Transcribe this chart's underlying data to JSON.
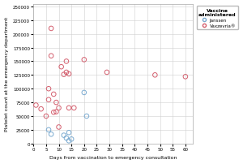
{
  "janssen_x": [
    6,
    7,
    12,
    13,
    14,
    14,
    15,
    20,
    21
  ],
  "janssen_y": [
    25000,
    17000,
    15000,
    10000,
    20000,
    5000,
    8000,
    93000,
    50000
  ],
  "astrazeneca_x": [
    1,
    3,
    5,
    6,
    6,
    7,
    7,
    8,
    8,
    9,
    9,
    10,
    10,
    11,
    12,
    13,
    13,
    14,
    14,
    16,
    20,
    29,
    48,
    60
  ],
  "astrazeneca_y": [
    70000,
    63000,
    50000,
    100000,
    80000,
    160000,
    210000,
    90000,
    57000,
    75000,
    58000,
    65000,
    30000,
    140000,
    126000,
    130000,
    150000,
    127000,
    65000,
    65000,
    153000,
    130000,
    125000,
    122000
  ],
  "janssen_color": "#7aaad0",
  "astrazeneca_color": "#d45f6e",
  "xlabel": "Days from vaccination to emergency consultation",
  "ylabel": "Platelet count at the emergency department",
  "xlim": [
    0,
    63
  ],
  "ylim": [
    0,
    255000
  ],
  "xticks": [
    0,
    5,
    10,
    15,
    20,
    25,
    30,
    35,
    40,
    45,
    50,
    55,
    60
  ],
  "yticks": [
    0,
    25000,
    50000,
    75000,
    100000,
    125000,
    150000,
    175000,
    200000,
    225000,
    250000
  ],
  "ytick_labels": [
    "0",
    "25000",
    "50000",
    "75000",
    "100000",
    "125000",
    "150000",
    "175000",
    "200000",
    "225000",
    "250000"
  ],
  "legend_title": "Vaccine\nadministered",
  "legend_janssen": "Janssen",
  "legend_astrazeneca": "Vaxzevria®",
  "marker_size": 4,
  "grid_color": "#d0d0d0"
}
